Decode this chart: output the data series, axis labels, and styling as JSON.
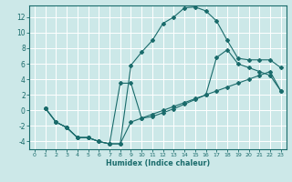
{
  "xlabel": "Humidex (Indice chaleur)",
  "bg_color": "#cce8e8",
  "grid_color": "#aacccc",
  "line_color": "#1a6b6b",
  "xlim": [
    -0.5,
    23.5
  ],
  "ylim": [
    -5.0,
    13.5
  ],
  "xticks": [
    0,
    1,
    2,
    3,
    4,
    5,
    6,
    7,
    8,
    9,
    10,
    11,
    12,
    13,
    14,
    15,
    16,
    17,
    18,
    19,
    20,
    21,
    22,
    23
  ],
  "yticks": [
    -4,
    -2,
    0,
    2,
    4,
    6,
    8,
    10,
    12
  ],
  "line1_x": [
    1,
    2,
    3,
    4,
    5,
    6,
    7,
    8,
    9,
    10,
    11,
    12,
    13,
    14,
    15,
    16,
    17,
    18,
    19,
    20,
    21,
    22,
    23
  ],
  "line1_y": [
    0.3,
    -1.5,
    -2.2,
    -3.5,
    -3.5,
    -4.0,
    -4.3,
    -4.3,
    5.8,
    7.5,
    9.0,
    11.2,
    12.0,
    13.2,
    13.3,
    12.8,
    11.5,
    9.0,
    6.7,
    6.5,
    6.5,
    6.5,
    5.5
  ],
  "line2_x": [
    1,
    2,
    3,
    4,
    5,
    6,
    7,
    8,
    9,
    10,
    11,
    12,
    13,
    14,
    15,
    16,
    17,
    18,
    19,
    20,
    21,
    22,
    23
  ],
  "line2_y": [
    0.3,
    -1.5,
    -2.2,
    -3.5,
    -3.5,
    -4.0,
    -4.3,
    3.5,
    3.5,
    -1.0,
    -0.8,
    -0.3,
    0.2,
    0.8,
    1.4,
    2.0,
    6.8,
    7.8,
    6.0,
    5.5,
    5.0,
    4.5,
    2.5
  ],
  "line3_x": [
    1,
    2,
    3,
    4,
    5,
    6,
    7,
    8,
    9,
    10,
    11,
    12,
    13,
    14,
    15,
    16,
    17,
    18,
    19,
    20,
    21,
    22,
    23
  ],
  "line3_y": [
    0.3,
    -1.5,
    -2.2,
    -3.5,
    -3.5,
    -4.0,
    -4.3,
    -4.3,
    -1.5,
    -1.0,
    -0.5,
    0.0,
    0.5,
    1.0,
    1.5,
    2.0,
    2.5,
    3.0,
    3.5,
    4.0,
    4.5,
    5.0,
    2.5
  ]
}
